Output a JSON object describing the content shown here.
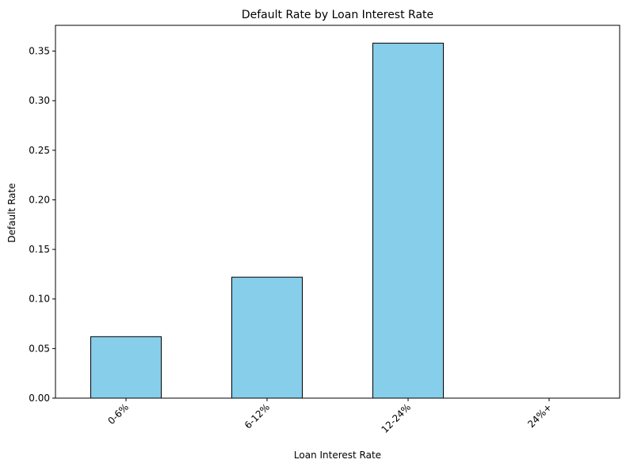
{
  "chart_data": {
    "type": "bar",
    "title": "Default Rate by Loan Interest Rate",
    "xlabel": "Loan Interest Rate",
    "ylabel": "Default Rate",
    "categories": [
      "0-6%",
      "6-12%",
      "12-24%",
      "24%+"
    ],
    "values": [
      0.062,
      0.122,
      0.358,
      0.0
    ],
    "ylim": [
      0,
      0.376
    ],
    "yticks": [
      0.0,
      0.05,
      0.1,
      0.15,
      0.2,
      0.25,
      0.3,
      0.35
    ],
    "ytick_labels": [
      "0.00",
      "0.05",
      "0.10",
      "0.15",
      "0.20",
      "0.25",
      "0.30",
      "0.35"
    ],
    "grid": false,
    "bar_color": "#87CEEB",
    "edge_color": "#000000"
  }
}
